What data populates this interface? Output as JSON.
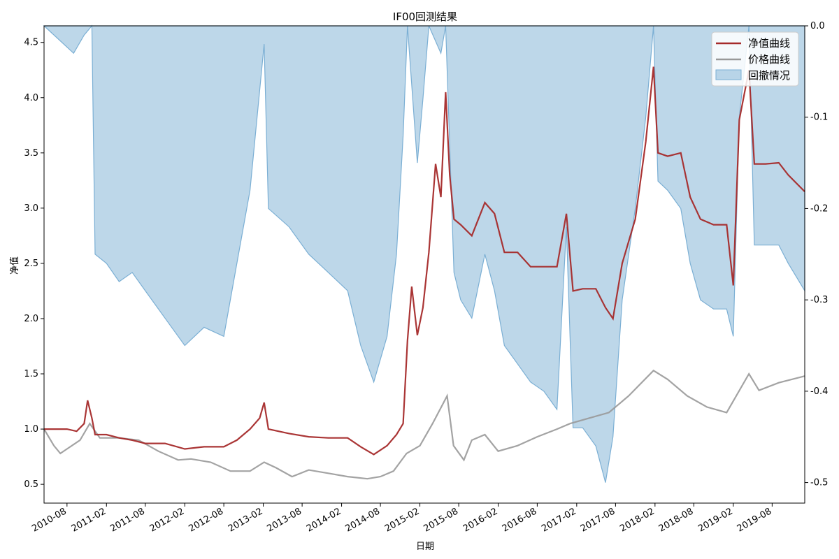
{
  "chart_data": {
    "type": "line",
    "title": "IF00回测结果",
    "xlabel": "日期",
    "ylabel": "净值",
    "ylim": [
      0.33,
      4.65
    ],
    "y_ticks": [
      0.5,
      1.0,
      1.5,
      2.0,
      2.5,
      3.0,
      3.5,
      4.0,
      4.5
    ],
    "y2lim": [
      -0.5225,
      0.0
    ],
    "y2_ticks": [
      0.0,
      -0.1,
      -0.2,
      -0.3,
      -0.4,
      -0.5
    ],
    "x_range": [
      "2010-04-16",
      "2019-12-31"
    ],
    "x_ticks": [
      "2010-08",
      "2011-02",
      "2011-08",
      "2012-02",
      "2012-08",
      "2013-02",
      "2013-08",
      "2014-02",
      "2014-08",
      "2015-02",
      "2015-08",
      "2016-02",
      "2016-08",
      "2017-02",
      "2017-08",
      "2018-02",
      "2018-08",
      "2019-02",
      "2019-08"
    ],
    "legend_position": "top-right",
    "series": [
      {
        "name": "净值曲线",
        "axis": "left",
        "color": "#a52a2a",
        "points": [
          [
            "2010-04-16",
            1.0
          ],
          [
            "2010-08-01",
            1.0
          ],
          [
            "2010-09-15",
            0.98
          ],
          [
            "2010-10-20",
            1.05
          ],
          [
            "2010-11-05",
            1.26
          ],
          [
            "2010-11-25",
            1.1
          ],
          [
            "2010-12-10",
            0.95
          ],
          [
            "2011-02-01",
            0.95
          ],
          [
            "2011-04-01",
            0.92
          ],
          [
            "2011-06-01",
            0.9
          ],
          [
            "2011-08-01",
            0.87
          ],
          [
            "2011-11-01",
            0.87
          ],
          [
            "2012-02-01",
            0.82
          ],
          [
            "2012-05-01",
            0.84
          ],
          [
            "2012-08-01",
            0.84
          ],
          [
            "2012-10-01",
            0.9
          ],
          [
            "2012-12-01",
            1.0
          ],
          [
            "2013-01-15",
            1.1
          ],
          [
            "2013-02-05",
            1.24
          ],
          [
            "2013-02-25",
            1.0
          ],
          [
            "2013-06-01",
            0.96
          ],
          [
            "2013-09-01",
            0.93
          ],
          [
            "2013-12-01",
            0.92
          ],
          [
            "2014-03-01",
            0.92
          ],
          [
            "2014-05-01",
            0.84
          ],
          [
            "2014-07-01",
            0.77
          ],
          [
            "2014-09-01",
            0.85
          ],
          [
            "2014-10-15",
            0.95
          ],
          [
            "2014-11-15",
            1.05
          ],
          [
            "2014-12-05",
            1.8
          ],
          [
            "2014-12-25",
            2.29
          ],
          [
            "2015-01-20",
            1.85
          ],
          [
            "2015-02-15",
            2.1
          ],
          [
            "2015-03-15",
            2.6
          ],
          [
            "2015-04-15",
            3.4
          ],
          [
            "2015-05-10",
            3.1
          ],
          [
            "2015-06-01",
            4.05
          ],
          [
            "2015-06-20",
            3.3
          ],
          [
            "2015-07-10",
            2.9
          ],
          [
            "2015-08-10",
            2.85
          ],
          [
            "2015-10-01",
            2.75
          ],
          [
            "2015-12-01",
            3.05
          ],
          [
            "2016-01-15",
            2.95
          ],
          [
            "2016-03-01",
            2.6
          ],
          [
            "2016-05-01",
            2.6
          ],
          [
            "2016-07-01",
            2.47
          ],
          [
            "2016-09-01",
            2.47
          ],
          [
            "2016-11-01",
            2.47
          ],
          [
            "2016-12-15",
            2.95
          ],
          [
            "2017-01-15",
            2.25
          ],
          [
            "2017-03-01",
            2.27
          ],
          [
            "2017-05-01",
            2.27
          ],
          [
            "2017-06-15",
            2.1
          ],
          [
            "2017-07-20",
            2.0
          ],
          [
            "2017-09-01",
            2.5
          ],
          [
            "2017-11-01",
            2.9
          ],
          [
            "2017-12-20",
            3.6
          ],
          [
            "2018-01-25",
            4.28
          ],
          [
            "2018-02-15",
            3.5
          ],
          [
            "2018-04-01",
            3.47
          ],
          [
            "2018-06-01",
            3.5
          ],
          [
            "2018-07-15",
            3.1
          ],
          [
            "2018-09-01",
            2.9
          ],
          [
            "2018-11-01",
            2.85
          ],
          [
            "2019-01-01",
            2.85
          ],
          [
            "2019-02-01",
            2.3
          ],
          [
            "2019-03-01",
            3.8
          ],
          [
            "2019-04-15",
            4.25
          ],
          [
            "2019-05-10",
            3.4
          ],
          [
            "2019-07-01",
            3.4
          ],
          [
            "2019-09-01",
            3.41
          ],
          [
            "2019-10-15",
            3.3
          ],
          [
            "2019-12-31",
            3.15
          ]
        ]
      },
      {
        "name": "价格曲线",
        "axis": "left",
        "color": "#999999",
        "points": [
          [
            "2010-04-16",
            1.0
          ],
          [
            "2010-06-01",
            0.85
          ],
          [
            "2010-07-01",
            0.78
          ],
          [
            "2010-08-01",
            0.82
          ],
          [
            "2010-10-01",
            0.9
          ],
          [
            "2010-11-15",
            1.05
          ],
          [
            "2011-01-01",
            0.92
          ],
          [
            "2011-04-01",
            0.92
          ],
          [
            "2011-07-01",
            0.9
          ],
          [
            "2011-10-01",
            0.8
          ],
          [
            "2012-01-01",
            0.72
          ],
          [
            "2012-03-01",
            0.73
          ],
          [
            "2012-06-01",
            0.7
          ],
          [
            "2012-09-01",
            0.62
          ],
          [
            "2012-12-01",
            0.62
          ],
          [
            "2013-02-05",
            0.7
          ],
          [
            "2013-04-01",
            0.65
          ],
          [
            "2013-06-15",
            0.57
          ],
          [
            "2013-09-01",
            0.63
          ],
          [
            "2013-12-01",
            0.6
          ],
          [
            "2014-03-01",
            0.57
          ],
          [
            "2014-06-01",
            0.55
          ],
          [
            "2014-08-01",
            0.57
          ],
          [
            "2014-10-01",
            0.62
          ],
          [
            "2014-12-01",
            0.78
          ],
          [
            "2015-02-01",
            0.85
          ],
          [
            "2015-04-01",
            1.05
          ],
          [
            "2015-06-08",
            1.3
          ],
          [
            "2015-07-08",
            0.85
          ],
          [
            "2015-08-25",
            0.72
          ],
          [
            "2015-10-01",
            0.9
          ],
          [
            "2015-12-01",
            0.95
          ],
          [
            "2016-02-01",
            0.8
          ],
          [
            "2016-05-01",
            0.85
          ],
          [
            "2016-08-01",
            0.93
          ],
          [
            "2016-11-01",
            1.0
          ],
          [
            "2017-01-01",
            1.05
          ],
          [
            "2017-04-01",
            1.1
          ],
          [
            "2017-07-01",
            1.15
          ],
          [
            "2017-10-01",
            1.3
          ],
          [
            "2018-01-25",
            1.53
          ],
          [
            "2018-04-01",
            1.45
          ],
          [
            "2018-07-01",
            1.3
          ],
          [
            "2018-10-01",
            1.2
          ],
          [
            "2019-01-01",
            1.15
          ],
          [
            "2019-04-15",
            1.5
          ],
          [
            "2019-06-01",
            1.35
          ],
          [
            "2019-09-01",
            1.42
          ],
          [
            "2019-12-31",
            1.48
          ]
        ]
      },
      {
        "name": "回撤情况",
        "axis": "right",
        "type": "area",
        "color": "#7bafd4",
        "points": [
          [
            "2010-04-16",
            0.0
          ],
          [
            "2010-09-01",
            -0.03
          ],
          [
            "2010-10-20",
            -0.01
          ],
          [
            "2010-11-25",
            0.0
          ],
          [
            "2010-12-10",
            -0.25
          ],
          [
            "2011-02-01",
            -0.26
          ],
          [
            "2011-04-01",
            -0.28
          ],
          [
            "2011-06-01",
            -0.27
          ],
          [
            "2011-08-01",
            -0.29
          ],
          [
            "2011-11-01",
            -0.32
          ],
          [
            "2012-02-01",
            -0.35
          ],
          [
            "2012-05-01",
            -0.33
          ],
          [
            "2012-08-01",
            -0.34
          ],
          [
            "2012-10-01",
            -0.26
          ],
          [
            "2012-12-01",
            -0.18
          ],
          [
            "2013-02-05",
            -0.02
          ],
          [
            "2013-02-25",
            -0.2
          ],
          [
            "2013-06-01",
            -0.22
          ],
          [
            "2013-09-01",
            -0.25
          ],
          [
            "2013-12-01",
            -0.27
          ],
          [
            "2014-03-01",
            -0.29
          ],
          [
            "2014-05-01",
            -0.35
          ],
          [
            "2014-07-01",
            -0.39
          ],
          [
            "2014-09-01",
            -0.34
          ],
          [
            "2014-10-15",
            -0.25
          ],
          [
            "2014-11-15",
            -0.12
          ],
          [
            "2014-12-05",
            0.0
          ],
          [
            "2015-01-20",
            -0.15
          ],
          [
            "2015-02-15",
            -0.08
          ],
          [
            "2015-03-15",
            0.0
          ],
          [
            "2015-05-10",
            -0.03
          ],
          [
            "2015-06-01",
            0.0
          ],
          [
            "2015-07-10",
            -0.27
          ],
          [
            "2015-08-10",
            -0.3
          ],
          [
            "2015-10-01",
            -0.32
          ],
          [
            "2015-12-01",
            -0.25
          ],
          [
            "2016-01-15",
            -0.29
          ],
          [
            "2016-03-01",
            -0.35
          ],
          [
            "2016-05-01",
            -0.37
          ],
          [
            "2016-07-01",
            -0.39
          ],
          [
            "2016-09-01",
            -0.4
          ],
          [
            "2016-11-01",
            -0.42
          ],
          [
            "2016-12-15",
            -0.22
          ],
          [
            "2017-01-15",
            -0.44
          ],
          [
            "2017-03-01",
            -0.44
          ],
          [
            "2017-05-01",
            -0.46
          ],
          [
            "2017-06-15",
            -0.5
          ],
          [
            "2017-07-20",
            -0.45
          ],
          [
            "2017-09-01",
            -0.3
          ],
          [
            "2017-11-01",
            -0.2
          ],
          [
            "2017-12-20",
            -0.1
          ],
          [
            "2018-01-25",
            0.0
          ],
          [
            "2018-02-15",
            -0.17
          ],
          [
            "2018-04-01",
            -0.18
          ],
          [
            "2018-06-01",
            -0.2
          ],
          [
            "2018-07-15",
            -0.26
          ],
          [
            "2018-09-01",
            -0.3
          ],
          [
            "2018-11-01",
            -0.31
          ],
          [
            "2019-01-01",
            -0.31
          ],
          [
            "2019-02-01",
            -0.34
          ],
          [
            "2019-03-01",
            -0.1
          ],
          [
            "2019-04-15",
            0.0
          ],
          [
            "2019-05-10",
            -0.24
          ],
          [
            "2019-07-01",
            -0.24
          ],
          [
            "2019-09-01",
            -0.24
          ],
          [
            "2019-10-15",
            -0.26
          ],
          [
            "2019-12-31",
            -0.29
          ]
        ]
      }
    ]
  }
}
